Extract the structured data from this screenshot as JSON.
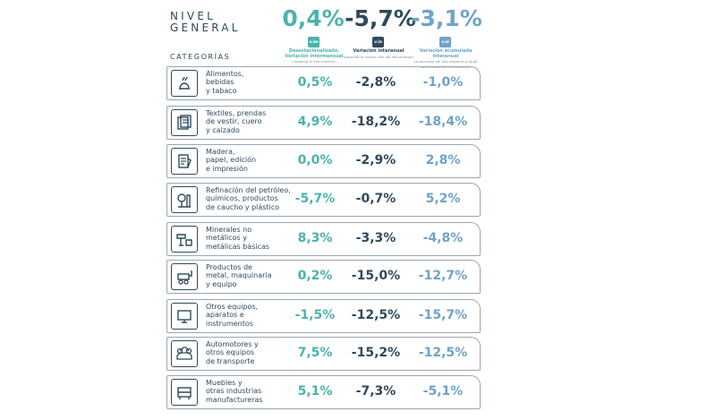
{
  "header": {
    "title_line1": "NIVEL",
    "title_line2": "GENERAL",
    "vim_value": "0,4%",
    "via_value": "-5,7%",
    "vai_value": "-3,1%",
    "badges": {
      "vim": "v.im",
      "via": "v.ia",
      "vai": "v.ai"
    },
    "columns": [
      {
        "title1": "Desestacionalizado.",
        "title2": "Variación intermensual",
        "subtitle": "(respecto al mes anterior)"
      },
      {
        "title1": "Variación interanual",
        "title2": "",
        "subtitle": "(respecto al mismo mes del año anterior)"
      },
      {
        "title1": "Variación acumulada interanual",
        "title2": "",
        "subtitle": "(acumulado del año respecto al igual acumulado del año anterior)"
      }
    ],
    "colors": {
      "vim": "#4ab3ad",
      "via": "#2e4a5c",
      "vai": "#6fa3c9"
    }
  },
  "categories_title": "CATEGORÍAS",
  "rows": [
    {
      "icon": "food-icon",
      "label": [
        "Alimentos,",
        "bebidas",
        "y tabaco"
      ],
      "vim": "0,5%",
      "via": "-2,8%",
      "vai": "-1,0%"
    },
    {
      "icon": "textile-icon",
      "label": [
        "Textiles, prendas",
        "de vestir, cuero",
        "y calzado"
      ],
      "vim": "4,9%",
      "via": "-18,2%",
      "vai": "-18,4%"
    },
    {
      "icon": "paper-icon",
      "label": [
        "Madera,",
        "papel, edición",
        "e impresión"
      ],
      "vim": "0,0%",
      "via": "-2,9%",
      "vai": "2,8%"
    },
    {
      "icon": "refinery-icon",
      "label": [
        "Refinación del petróleo,",
        "químicos, productos",
        "de caucho y plástico"
      ],
      "vim": "-5,7%",
      "via": "-0,7%",
      "vai": "5,2%"
    },
    {
      "icon": "minerals-icon",
      "label": [
        "Minerales no",
        "metálicos y",
        "metálicas básicas"
      ],
      "vim": "8,3%",
      "via": "-3,3%",
      "vai": "-4,8%"
    },
    {
      "icon": "machinery-icon",
      "label": [
        "Productos de",
        "metal, maquinaria",
        "y equipo"
      ],
      "vim": "0,2%",
      "via": "-15,0%",
      "vai": "-12,7%"
    },
    {
      "icon": "instruments-icon",
      "label": [
        "Otros equipos,",
        "aparatos e",
        "instrumentos"
      ],
      "vim": "-1,5%",
      "via": "-12,5%",
      "vai": "-15,7%"
    },
    {
      "icon": "vehicles-icon",
      "label": [
        "Automotores y",
        "otros equipos",
        "de transporte"
      ],
      "vim": "7,5%",
      "via": "-15,2%",
      "vai": "-12,5%"
    },
    {
      "icon": "furniture-icon",
      "label": [
        "Muebles y",
        "otras industrias",
        "manufactureras"
      ],
      "vim": "5,1%",
      "via": "-7,3%",
      "vai": "-5,1%"
    }
  ]
}
